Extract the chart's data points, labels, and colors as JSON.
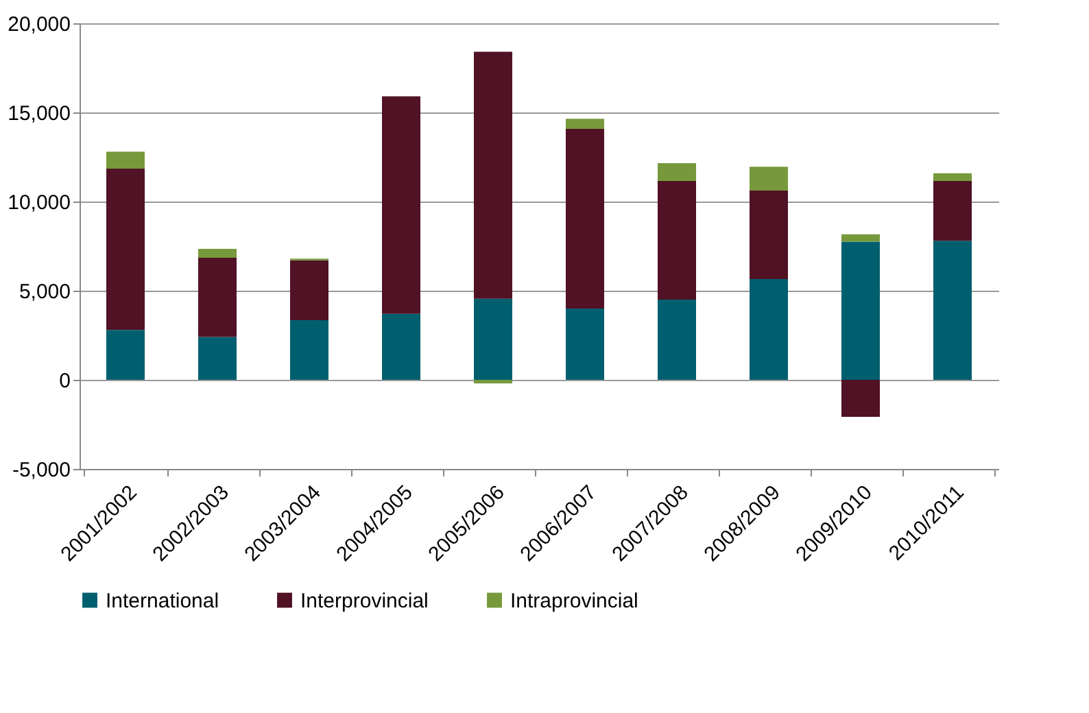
{
  "chart_data": {
    "type": "bar",
    "stacked": true,
    "categories": [
      "2001/2002",
      "2002/2003",
      "2003/2004",
      "2004/2005",
      "2005/2006",
      "2006/2007",
      "2007/2008",
      "2008/2009",
      "2009/2010",
      "2010/2011"
    ],
    "series": [
      {
        "name": "International",
        "color": "#005f6e",
        "values": [
          2800,
          2400,
          3350,
          3700,
          4550,
          4000,
          4500,
          5650,
          7750,
          7800
        ]
      },
      {
        "name": "Interprovincial",
        "color": "#501224",
        "values": [
          9050,
          4450,
          3350,
          12200,
          13850,
          10080,
          6650,
          4970,
          -2080,
          3350
        ]
      },
      {
        "name": "Intraprovincial",
        "color": "#77993c",
        "values": [
          950,
          500,
          100,
          0,
          -200,
          560,
          1000,
          1330,
          410,
          440
        ]
      }
    ],
    "ylim": [
      -5000,
      20000
    ],
    "yticks": [
      {
        "value": -5000,
        "label": "-5,000"
      },
      0,
      {
        "value": 5000,
        "label": "5,000"
      },
      {
        "value": 10000,
        "label": "10,000"
      },
      {
        "value": 15000,
        "label": "15,000"
      },
      {
        "value": 20000,
        "label": "20,000"
      }
    ],
    "grid": "y",
    "legend": "bottom"
  }
}
